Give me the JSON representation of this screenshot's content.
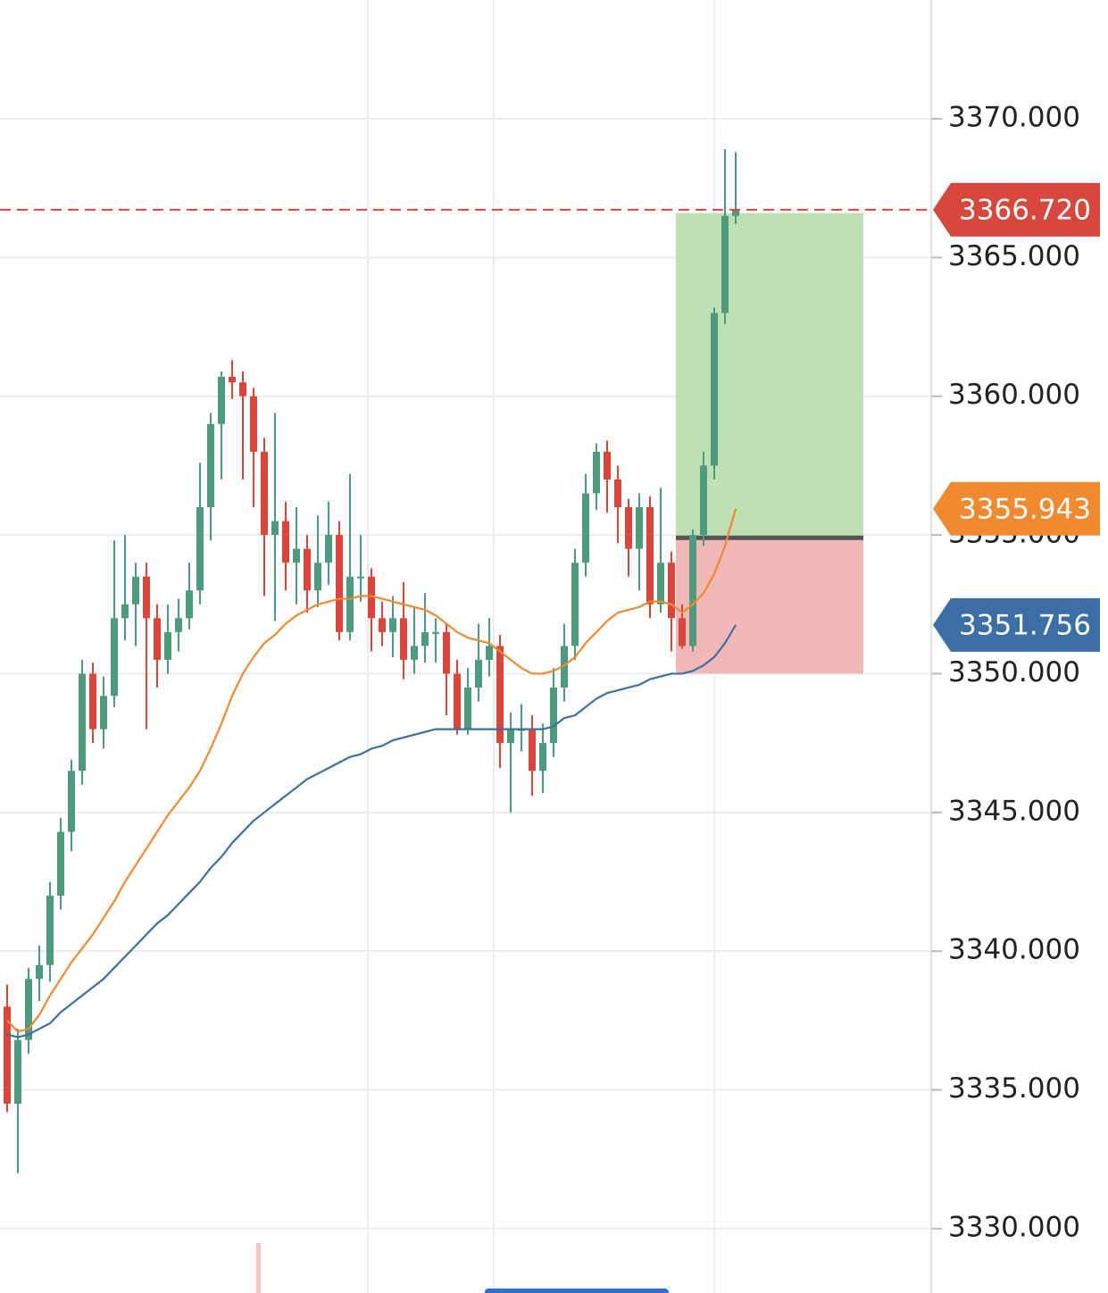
{
  "chart_data": {
    "type": "candlestick",
    "ylim": [
      3327.68,
      3374.28
    ],
    "yticks": [
      {
        "value": 3330,
        "label": "3330.000"
      },
      {
        "value": 3335,
        "label": "3335.000"
      },
      {
        "value": 3340,
        "label": "3340.000"
      },
      {
        "value": 3345,
        "label": "3345.000"
      },
      {
        "value": 3350,
        "label": "3350.000"
      },
      {
        "value": 3355,
        "label": "3355.000"
      },
      {
        "value": 3360,
        "label": "3360.000"
      },
      {
        "value": 3365,
        "label": "3365.000"
      },
      {
        "value": 3370,
        "label": "3370.000"
      }
    ],
    "grid": true,
    "up_color": "#4f9a7c",
    "down_color": "#d8473b",
    "candles": [
      [
        3338.0,
        3338.8,
        3334.2,
        3334.5
      ],
      [
        3334.5,
        3337.2,
        3332.0,
        3336.8
      ],
      [
        3336.8,
        3339.4,
        3336.3,
        3339.0
      ],
      [
        3339.0,
        3340.2,
        3338.2,
        3339.5
      ],
      [
        3339.5,
        3342.5,
        3338.9,
        3342.0
      ],
      [
        3342.0,
        3344.8,
        3341.5,
        3344.3
      ],
      [
        3344.3,
        3346.9,
        3343.6,
        3346.5
      ],
      [
        3346.5,
        3350.5,
        3346.0,
        3350.0
      ],
      [
        3350.0,
        3350.4,
        3347.5,
        3348.0
      ],
      [
        3348.0,
        3349.9,
        3347.3,
        3349.2
      ],
      [
        3349.2,
        3354.8,
        3348.8,
        3352.0
      ],
      [
        3352.0,
        3355.0,
        3351.2,
        3352.5
      ],
      [
        3352.5,
        3354.0,
        3351.0,
        3353.5
      ],
      [
        3353.5,
        3354.0,
        3348.0,
        3352.0
      ],
      [
        3352.0,
        3352.5,
        3349.5,
        3350.5
      ],
      [
        3350.5,
        3352.5,
        3350.0,
        3351.5
      ],
      [
        3351.5,
        3352.7,
        3350.8,
        3352.0
      ],
      [
        3352.0,
        3354.0,
        3351.6,
        3353.0
      ],
      [
        3353.0,
        3357.6,
        3352.5,
        3356.0
      ],
      [
        3356.0,
        3359.4,
        3354.8,
        3359.0
      ],
      [
        3359.0,
        3360.9,
        3357.0,
        3360.7
      ],
      [
        3360.7,
        3361.3,
        3359.9,
        3360.5
      ],
      [
        3360.5,
        3360.9,
        3357.0,
        3360.0
      ],
      [
        3360.0,
        3360.3,
        3356.0,
        3358.0
      ],
      [
        3358.0,
        3358.5,
        3352.8,
        3355.0
      ],
      [
        3355.0,
        3359.4,
        3351.9,
        3355.5
      ],
      [
        3355.5,
        3356.2,
        3353.0,
        3354.0
      ],
      [
        3354.0,
        3356.0,
        3352.5,
        3354.5
      ],
      [
        3354.5,
        3355.0,
        3352.2,
        3353.0
      ],
      [
        3353.0,
        3355.7,
        3352.4,
        3354.0
      ],
      [
        3354.0,
        3356.2,
        3353.2,
        3355.0
      ],
      [
        3355.0,
        3355.5,
        3351.2,
        3351.5
      ],
      [
        3351.5,
        3357.2,
        3351.2,
        3353.5
      ],
      [
        3353.5,
        3355.0,
        3352.6,
        3353.5
      ],
      [
        3353.5,
        3353.8,
        3350.8,
        3352.0
      ],
      [
        3352.0,
        3352.6,
        3351.0,
        3351.5
      ],
      [
        3351.5,
        3352.8,
        3350.6,
        3352.0
      ],
      [
        3352.0,
        3353.3,
        3349.8,
        3350.5
      ],
      [
        3350.5,
        3352.4,
        3350.0,
        3351.0
      ],
      [
        3351.0,
        3352.9,
        3350.4,
        3351.5
      ],
      [
        3351.5,
        3352.0,
        3350.4,
        3351.5
      ],
      [
        3351.5,
        3351.8,
        3348.5,
        3350.0
      ],
      [
        3350.0,
        3350.5,
        3347.8,
        3348.0
      ],
      [
        3348.0,
        3350.2,
        3347.8,
        3349.5
      ],
      [
        3349.5,
        3351.8,
        3349.0,
        3350.5
      ],
      [
        3350.5,
        3352.0,
        3349.9,
        3351.0
      ],
      [
        3351.0,
        3351.4,
        3346.6,
        3347.5
      ],
      [
        3347.5,
        3348.6,
        3345.0,
        3348.0
      ],
      [
        3348.0,
        3348.9,
        3347.2,
        3348.0
      ],
      [
        3348.0,
        3348.5,
        3345.6,
        3346.5
      ],
      [
        3346.5,
        3348.2,
        3345.7,
        3347.5
      ],
      [
        3347.5,
        3350.2,
        3347.0,
        3349.5
      ],
      [
        3349.5,
        3351.8,
        3349.0,
        3351.0
      ],
      [
        3351.0,
        3354.5,
        3350.5,
        3354.0
      ],
      [
        3354.0,
        3357.2,
        3353.5,
        3356.5
      ],
      [
        3356.5,
        3358.3,
        3355.9,
        3358.0
      ],
      [
        3358.0,
        3358.4,
        3355.8,
        3357.0
      ],
      [
        3357.0,
        3357.5,
        3354.7,
        3356.0
      ],
      [
        3356.0,
        3356.3,
        3353.5,
        3354.5
      ],
      [
        3354.5,
        3356.5,
        3353.0,
        3356.0
      ],
      [
        3356.0,
        3356.4,
        3352.0,
        3352.5
      ],
      [
        3352.5,
        3356.7,
        3352.2,
        3354.0
      ],
      [
        3354.0,
        3354.4,
        3350.8,
        3352.0
      ],
      [
        3352.0,
        3352.5,
        3350.9,
        3351.0
      ],
      [
        3351.0,
        3355.2,
        3350.8,
        3355.0
      ],
      [
        3355.0,
        3358.0,
        3354.6,
        3357.5
      ],
      [
        3357.5,
        3363.2,
        3357.0,
        3363.0
      ],
      [
        3363.0,
        3368.9,
        3362.6,
        3366.5
      ],
      [
        3366.5,
        3368.8,
        3366.2,
        3366.72
      ]
    ],
    "series": [
      {
        "color": "#f0892f",
        "values": [
          3337.5,
          3337.1,
          3337.2,
          3337.7,
          3338.4,
          3339.0,
          3339.6,
          3340.1,
          3340.6,
          3341.2,
          3341.8,
          3342.5,
          3343.1,
          3343.7,
          3344.3,
          3344.9,
          3345.4,
          3345.9,
          3346.5,
          3347.3,
          3348.2,
          3349.2,
          3350.0,
          3350.6,
          3351.1,
          3351.4,
          3351.8,
          3352.1,
          3352.3,
          3352.5,
          3352.6,
          3352.7,
          3352.7,
          3352.8,
          3352.8,
          3352.7,
          3352.6,
          3352.5,
          3352.4,
          3352.3,
          3352.1,
          3351.8,
          3351.5,
          3351.3,
          3351.2,
          3351.1,
          3350.8,
          3350.5,
          3350.2,
          3350.0,
          3350.0,
          3350.1,
          3350.3,
          3350.6,
          3351.1,
          3351.5,
          3351.9,
          3352.2,
          3352.3,
          3352.4,
          3352.6,
          3352.6,
          3352.5,
          3352.2,
          3352.5,
          3352.9,
          3353.6,
          3354.6,
          3355.943
        ]
      },
      {
        "color": "#3c6fa5",
        "values": [
          3337.0,
          3336.9,
          3337.0,
          3337.2,
          3337.4,
          3337.8,
          3338.1,
          3338.4,
          3338.7,
          3339.0,
          3339.4,
          3339.8,
          3340.2,
          3340.6,
          3341.0,
          3341.3,
          3341.7,
          3342.1,
          3342.5,
          3343.0,
          3343.4,
          3343.9,
          3344.3,
          3344.7,
          3345.0,
          3345.3,
          3345.6,
          3345.9,
          3346.2,
          3346.4,
          3346.6,
          3346.8,
          3347.0,
          3347.1,
          3347.3,
          3347.4,
          3347.6,
          3347.7,
          3347.8,
          3347.9,
          3348.0,
          3348.0,
          3348.0,
          3348.0,
          3348.0,
          3348.0,
          3348.0,
          3348.0,
          3348.0,
          3348.0,
          3348.0,
          3348.1,
          3348.4,
          3348.5,
          3348.8,
          3349.1,
          3349.3,
          3349.4,
          3349.5,
          3349.6,
          3349.8,
          3349.9,
          3350.0,
          3350.0,
          3350.1,
          3350.3,
          3350.6,
          3351.1,
          3351.756
        ]
      }
    ],
    "price_line": {
      "value": 3366.72,
      "label": "3366.720",
      "color": "#d8473b"
    },
    "position": {
      "entry": 3354.9,
      "target": 3366.6,
      "stop": 3350.0
    }
  }
}
